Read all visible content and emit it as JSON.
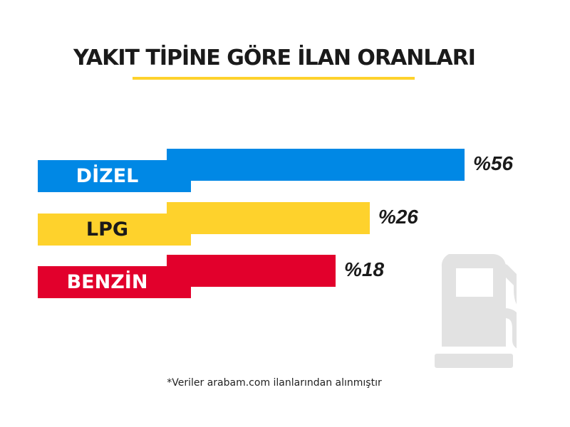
{
  "chart_data": {
    "type": "bar",
    "title": "YAKIT TİPİNE GÖRE İLAN ORANLARI",
    "categories": [
      "DİZEL",
      "LPG",
      "BENZİN"
    ],
    "values": [
      56,
      26,
      18
    ],
    "value_labels": [
      "%56",
      "%26",
      "%18"
    ],
    "colors": [
      "#0088e5",
      "#fed22c",
      "#e2002c"
    ],
    "label_text_colors": [
      "#ffffff",
      "#1a1a1a",
      "#ffffff"
    ],
    "xlabel": "",
    "ylabel": "",
    "footnote": "*Veriler arabam.com ilanlarından alınmıştır"
  },
  "icon": "fuel-pump-icon"
}
